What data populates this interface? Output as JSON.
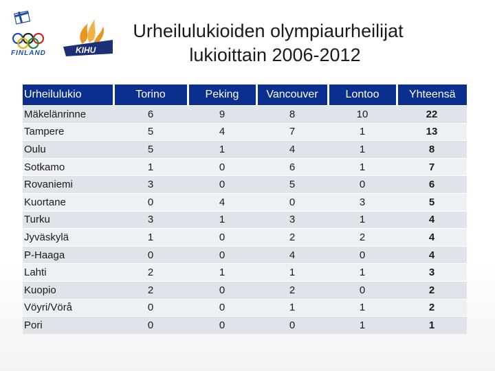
{
  "title": {
    "line1": "Urheilulukioiden olympiaurheilijat",
    "line2": "lukioittain 2006-2012"
  },
  "logos": {
    "finland_text": "FINLAND",
    "kihu_text": "KIHU"
  },
  "table": {
    "headers": [
      "Urheilulukio",
      "Torino",
      "Peking",
      "Vancouver",
      "Lontoo",
      "Yhteensä"
    ],
    "rows": [
      [
        "Mäkelänrinne",
        "6",
        "9",
        "8",
        "10",
        "22"
      ],
      [
        "Tampere",
        "5",
        "4",
        "7",
        "1",
        "13"
      ],
      [
        "Oulu",
        "5",
        "1",
        "4",
        "1",
        "8"
      ],
      [
        "Sotkamo",
        "1",
        "0",
        "6",
        "1",
        "7"
      ],
      [
        "Rovaniemi",
        "3",
        "0",
        "5",
        "0",
        "6"
      ],
      [
        "Kuortane",
        "0",
        "4",
        "0",
        "3",
        "5"
      ],
      [
        "Turku",
        "3",
        "1",
        "3",
        "1",
        "4"
      ],
      [
        "Jyväskylä",
        "1",
        "0",
        "2",
        "2",
        "4"
      ],
      [
        "P-Haaga",
        "0",
        "0",
        "4",
        "0",
        "4"
      ],
      [
        "Lahti",
        "2",
        "1",
        "1",
        "1",
        "3"
      ],
      [
        "Kuopio",
        "2",
        "0",
        "2",
        "0",
        "2"
      ],
      [
        "Vöyri/Vörå",
        "0",
        "0",
        "1",
        "1",
        "2"
      ],
      [
        "Pori",
        "0",
        "0",
        "0",
        "1",
        "1"
      ]
    ]
  },
  "colors": {
    "header_bg": "#0a2f8f",
    "row_odd": "#dfe3ea",
    "row_even": "#edf0f4",
    "flag_blue": "#1b4ea3",
    "kihu_navy": "#1c2f78",
    "kihu_orange": "#e8961e"
  }
}
